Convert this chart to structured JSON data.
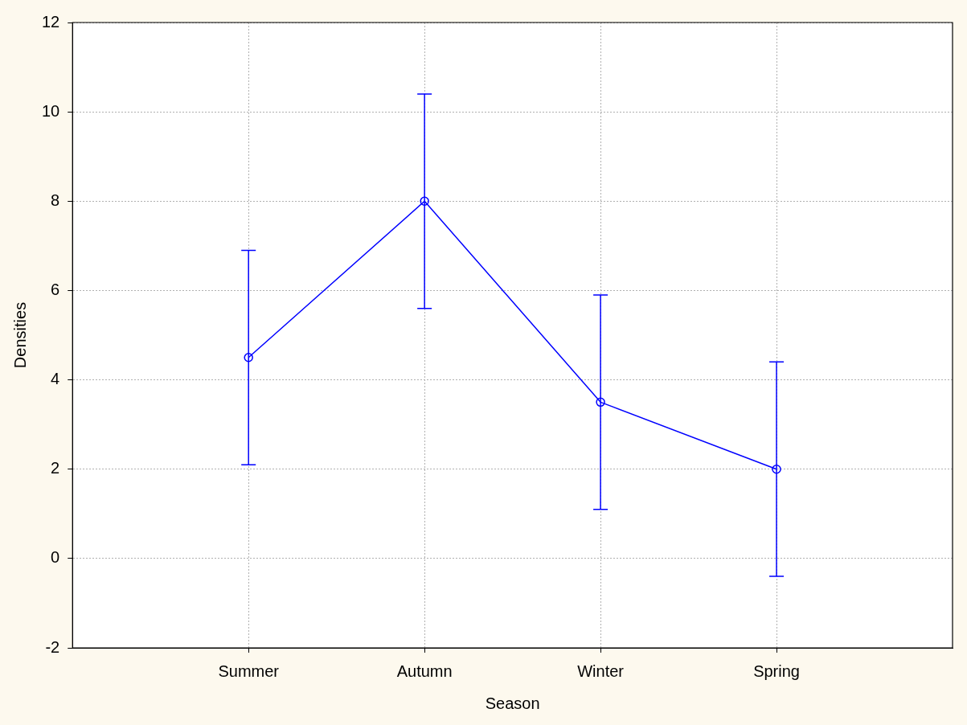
{
  "chart_data": {
    "type": "line",
    "xlabel": "Season",
    "ylabel": "Densities",
    "categories": [
      "Summer",
      "Autumn",
      "Winter",
      "Spring"
    ],
    "series": [
      {
        "color": "#0000ff",
        "values": [
          4.5,
          8.0,
          3.5,
          2.0
        ],
        "errors": [
          2.4,
          2.4,
          2.4,
          2.4
        ]
      }
    ],
    "ylim": [
      -2,
      12
    ],
    "yticks": [
      -2,
      0,
      2,
      4,
      6,
      8,
      10,
      12
    ],
    "grid": true,
    "legend": false,
    "marker": "circle",
    "line_style": "solid"
  }
}
